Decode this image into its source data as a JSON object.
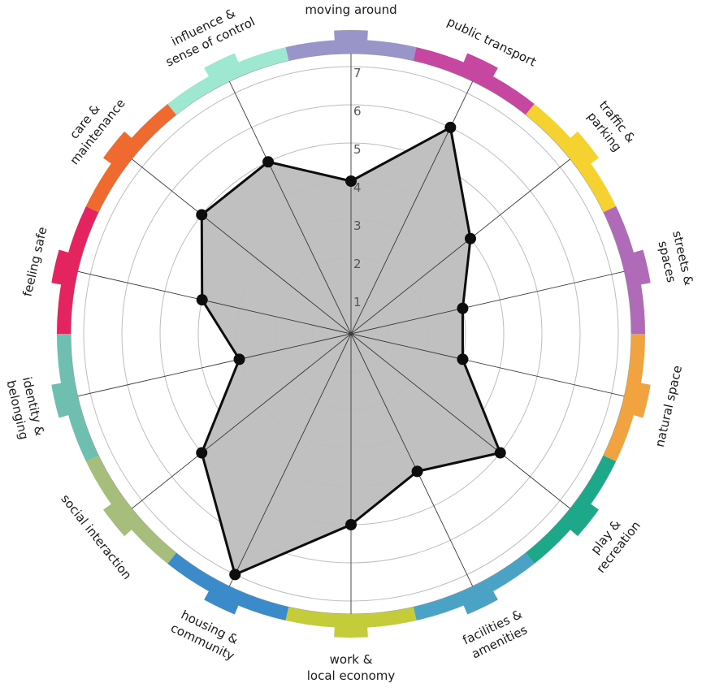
{
  "chart_data": {
    "type": "radar",
    "r_max": 7,
    "ticks": [
      "1",
      "2",
      "3",
      "4",
      "5",
      "6",
      "7"
    ],
    "grid": true,
    "categories": [
      {
        "label": [
          "moving around"
        ],
        "value": 4,
        "color": "#9a95c8"
      },
      {
        "label": [
          "public transport"
        ],
        "value": 6,
        "color": "#c6479f"
      },
      {
        "label": [
          "traffic &",
          "parking"
        ],
        "value": 4,
        "color": "#f5d22f"
      },
      {
        "label": [
          "streets &",
          "spaces"
        ],
        "value": 3,
        "color": "#b06bb8"
      },
      {
        "label": [
          "natural space"
        ],
        "value": 3,
        "color": "#f0a33e"
      },
      {
        "label": [
          "play &",
          "recreation"
        ],
        "value": 5,
        "color": "#1da88a"
      },
      {
        "label": [
          "facilities &",
          "amenities"
        ],
        "value": 4,
        "color": "#4aa3c5"
      },
      {
        "label": [
          "work &",
          "local economy"
        ],
        "value": 5,
        "color": "#c5cc3a"
      },
      {
        "label": [
          "housing &",
          "community"
        ],
        "value": 7,
        "color": "#3b8ac9"
      },
      {
        "label": [
          "social interaction"
        ],
        "value": 5,
        "color": "#a6bd7b"
      },
      {
        "label": [
          "identity &",
          "belonging"
        ],
        "value": 3,
        "color": "#6fbfb1"
      },
      {
        "label": [
          "feeling safe"
        ],
        "value": 4,
        "color": "#e3245f"
      },
      {
        "label": [
          "care &",
          "maintenance"
        ],
        "value": 5,
        "color": "#ee6a2f"
      },
      {
        "label": [
          "influence &",
          "sense of control"
        ],
        "value": 5,
        "color": "#9ee8d2"
      }
    ]
  }
}
